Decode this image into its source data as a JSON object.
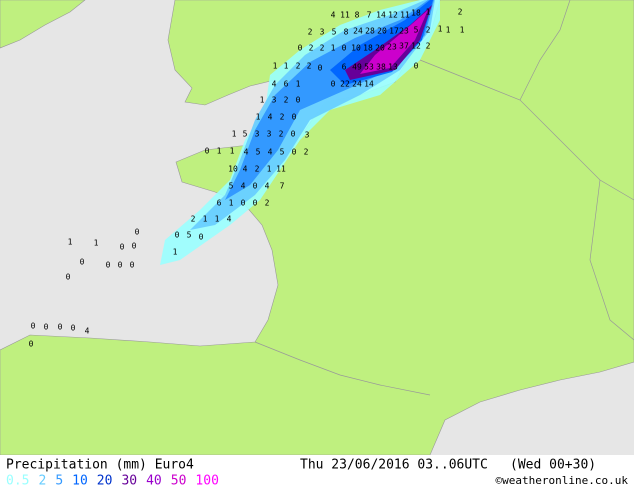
{
  "footer": {
    "title": "Precipitation (mm) Euro4",
    "valid_time": "Thu 23/06/2016 03..06UTC",
    "run": "(Wed 00+30)",
    "credit": "©weatheronline.co.uk"
  },
  "legend": [
    {
      "value": 0.5,
      "color": "#99ffff"
    },
    {
      "value": 2,
      "color": "#66ccff"
    },
    {
      "value": 5,
      "color": "#3399ff"
    },
    {
      "value": 10,
      "color": "#0066ff"
    },
    {
      "value": 20,
      "color": "#0033cc"
    },
    {
      "value": 30,
      "color": "#660099"
    },
    {
      "value": 40,
      "color": "#9900cc"
    },
    {
      "value": 50,
      "color": "#cc00cc"
    },
    {
      "value": 100,
      "color": "#ff00ff"
    }
  ],
  "map_labels": [
    4,
    11,
    8,
    7,
    14,
    12,
    11,
    18,
    1,
    2,
    1,
    1,
    2,
    3,
    5,
    8,
    24,
    28,
    20,
    17,
    23,
    5,
    2,
    1,
    0,
    2,
    2,
    1,
    0,
    10,
    18,
    20,
    23,
    37,
    12,
    2,
    1,
    1,
    2,
    2,
    0,
    6,
    49,
    53,
    38,
    13,
    0,
    0,
    22,
    24,
    14,
    4,
    6,
    1,
    1,
    3,
    2,
    0,
    1,
    4,
    2,
    0,
    1,
    5,
    3,
    3,
    2,
    0,
    3,
    4,
    5,
    4,
    5,
    0,
    2,
    10,
    4,
    2,
    1,
    11,
    5,
    4,
    0,
    4,
    7,
    6,
    1,
    0,
    0,
    2,
    2,
    1,
    1,
    4,
    0,
    5,
    0,
    1,
    0,
    1,
    1,
    1,
    1,
    0,
    0,
    0,
    0,
    0,
    0,
    0,
    0,
    0,
    0,
    0,
    0,
    4,
    0
  ]
}
